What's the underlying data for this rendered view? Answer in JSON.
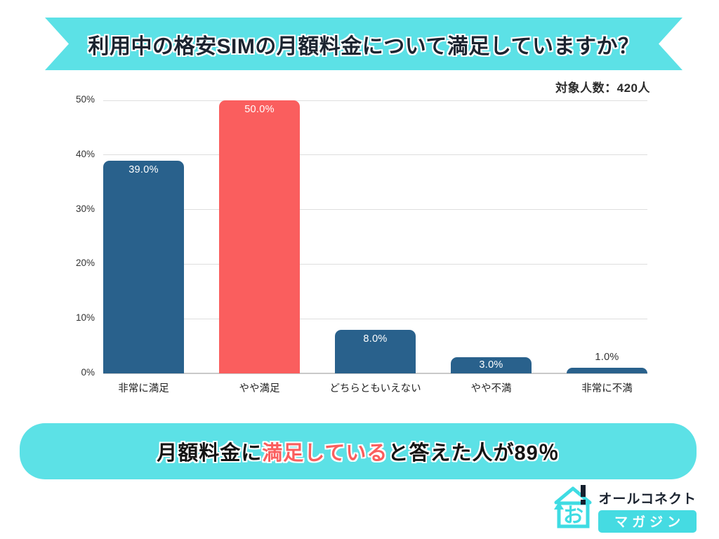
{
  "header": {
    "title": "利用中の格安SIMの月額料金について満足していますか？",
    "sample_size_label": "対象人数：420人"
  },
  "chart_data": {
    "type": "bar",
    "title": "利用中の格安SIMの月額料金について満足していますか？",
    "categories": [
      "非常に満足",
      "やや満足",
      "どちらともいえない",
      "やや不満",
      "非常に不満"
    ],
    "values": [
      39.0,
      50.0,
      8.0,
      3.0,
      1.0
    ],
    "value_labels": [
      "39.0%",
      "50.0%",
      "8.0%",
      "3.0%",
      "1.0%"
    ],
    "bar_colors": [
      "#29618C",
      "#FA5E5E",
      "#29618C",
      "#29618C",
      "#29618C"
    ],
    "unit": "%",
    "ylim": [
      0,
      50
    ],
    "ytick_labels": [
      "0%",
      "10%",
      "20%",
      "30%",
      "40%",
      "50%"
    ],
    "grid": true,
    "legend": "none"
  },
  "summary": {
    "prefix": "月額料金に",
    "highlight": "満足している",
    "suffix": "と答えた人が89％"
  },
  "logo": {
    "brand": "オールコネクト",
    "sub": "マガジン",
    "icon": "house-o-icon",
    "icon_char": "お"
  },
  "colors": {
    "accent_cyan": "#5CE1E6",
    "bar_blue": "#29618C",
    "bar_red": "#FA5E5E",
    "highlight_red": "#FA5E5E",
    "title_text": "#1c2430",
    "axis_text": "#333333",
    "gridline": "#dedede",
    "logo_cyan": "#3FDCE3"
  }
}
